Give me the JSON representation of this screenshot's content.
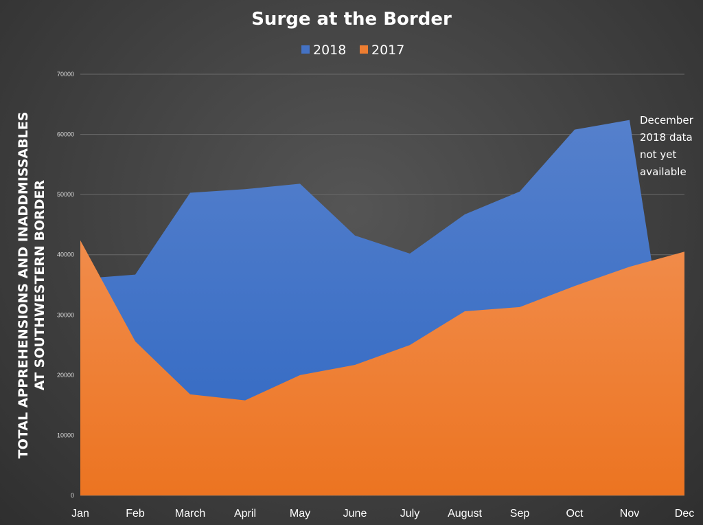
{
  "chart_data": {
    "type": "area",
    "title": "Surge at the Border",
    "xlabel": "",
    "ylabel": "TOTAL APPREHENSIONS AND INADDMISSABLES AT SOUTHWESTERN BORDER",
    "ylabel_lines": [
      "TOTAL APPREHENSIONS AND INADDMISSABLES",
      "AT SOUTHWESTERN BORDER"
    ],
    "categories": [
      "Jan",
      "Feb",
      "March",
      "April",
      "May",
      "June",
      "July",
      "August",
      "Sep",
      "Oct",
      "Nov",
      "Dec"
    ],
    "ylim": [
      0,
      70000
    ],
    "yticks": [
      0,
      10000,
      20000,
      30000,
      40000,
      50000,
      60000,
      70000
    ],
    "grid": true,
    "legend_position": "top",
    "series": [
      {
        "name": "2018",
        "color": "#4472C4",
        "values": [
          36000,
          36700,
          50300,
          50900,
          51800,
          43200,
          40200,
          46700,
          50500,
          60800,
          62400,
          null
        ]
      },
      {
        "name": "2017",
        "color": "#ED7D31",
        "values": [
          42400,
          25600,
          16800,
          15800,
          20000,
          21700,
          25000,
          30600,
          31300,
          34800,
          38000,
          40500
        ]
      }
    ],
    "annotations": [
      {
        "text": "December 2018 data not yet available",
        "lines": [
          "December",
          "2018 data",
          "not yet",
          "available"
        ]
      }
    ]
  }
}
